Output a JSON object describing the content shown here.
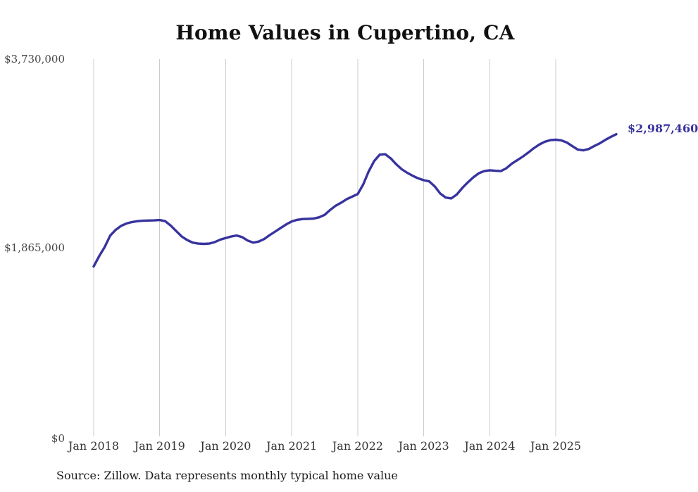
{
  "title": "Home Values in Cupertino, CA",
  "chart_data": {
    "type": "line",
    "title": "Home Values in Cupertino, CA",
    "x_unit": "month",
    "x_range": [
      "Jan 2018",
      "Dec 2025"
    ],
    "x_tick_labels": [
      "Jan 2018",
      "Jan 2019",
      "Jan 2020",
      "Jan 2021",
      "Jan 2022",
      "Jan 2023",
      "Jan 2024",
      "Jan 2025"
    ],
    "y_ticks": [
      {
        "label": "$0",
        "value": 0
      },
      {
        "label": "$1,865,000",
        "value": 1865000
      },
      {
        "label": "$3,730,000",
        "value": 3730000
      }
    ],
    "ylim": [
      0,
      3730000
    ],
    "grid": "vertical-only",
    "legend": "none",
    "line_color": "#37339e",
    "grid_color": "#cccccc",
    "last_point_label": "$2,987,460",
    "last_point_value": 2987460,
    "series": [
      {
        "name": "Monthly typical home value",
        "values": [
          1680000,
          1782000,
          1872000,
          1985000,
          2042000,
          2082000,
          2106000,
          2120000,
          2128000,
          2132000,
          2134000,
          2136000,
          2139000,
          2128000,
          2085000,
          2030000,
          1976000,
          1941000,
          1916000,
          1906000,
          1903000,
          1906000,
          1921000,
          1945000,
          1962000,
          1976000,
          1986000,
          1970000,
          1936000,
          1916000,
          1926000,
          1951000,
          1990000,
          2025000,
          2061000,
          2096000,
          2125000,
          2141000,
          2149000,
          2151000,
          2154000,
          2166000,
          2191000,
          2240000,
          2281000,
          2311000,
          2346000,
          2371000,
          2396000,
          2491000,
          2621000,
          2723000,
          2786000,
          2790000,
          2748000,
          2690000,
          2641000,
          2606000,
          2576000,
          2551000,
          2533000,
          2521000,
          2471000,
          2401000,
          2361000,
          2353000,
          2391000,
          2456000,
          2511000,
          2561000,
          2601000,
          2623000,
          2631000,
          2626000,
          2623000,
          2651000,
          2696000,
          2731000,
          2766000,
          2806000,
          2849000,
          2886000,
          2913000,
          2929000,
          2933000,
          2927000,
          2906000,
          2870000,
          2836000,
          2828000,
          2841000,
          2871000,
          2898000,
          2931000,
          2961000,
          2987460
        ]
      }
    ]
  },
  "footer": {
    "source": "Source: Zillow. Data represents monthly typical home value"
  }
}
